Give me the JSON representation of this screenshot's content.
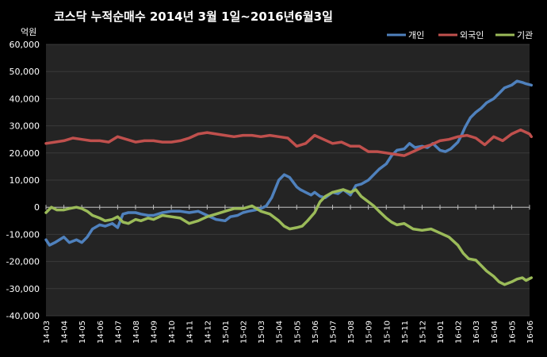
{
  "chart_data": {
    "type": "line",
    "title": "코스닥  누적순매수 2014년 3월 1일~2016년6월3일",
    "ylabel": "억원",
    "xlabel": "",
    "ylim": [
      -40000,
      60000
    ],
    "yticks": [
      60000,
      50000,
      40000,
      30000,
      20000,
      10000,
      0,
      -10000,
      -20000,
      -30000,
      -40000
    ],
    "ytick_labels": [
      "60,000",
      "50,000",
      "40,000",
      "30,000",
      "20,000",
      "10,000",
      "0",
      "-10,000",
      "-20,000",
      "-30,000",
      "-40,000"
    ],
    "categories": [
      "14-03",
      "14-04",
      "14-05",
      "14-06",
      "14-07",
      "14-08",
      "14-09",
      "14-10",
      "14-11",
      "14-12",
      "15-01",
      "15-02",
      "15-03",
      "15-04",
      "15-05",
      "15-06",
      "15-07",
      "15-08",
      "15-09",
      "15-10",
      "15-11",
      "15-12",
      "16-01",
      "16-02",
      "16-03",
      "16-04",
      "16-05",
      "16-06"
    ],
    "grid": true,
    "legend_position": "top-right",
    "series": [
      {
        "name": "개인",
        "color": "#4f81bd",
        "x": [
          0,
          0.2,
          0.5,
          1,
          1.3,
          1.7,
          2,
          2.3,
          2.6,
          3,
          3.3,
          3.7,
          4,
          4.3,
          4.6,
          5,
          5.3,
          5.7,
          6,
          6.5,
          7,
          7.5,
          8,
          8.5,
          9,
          9.5,
          10,
          10.3,
          10.7,
          11,
          11.3,
          11.7,
          12,
          12.3,
          12.6,
          13,
          13.3,
          13.6,
          14,
          14.2,
          14.5,
          14.8,
          15,
          15.3,
          15.6,
          16,
          16.3,
          16.6,
          17,
          17.3,
          17.6,
          18,
          18.3,
          18.6,
          19,
          19.3,
          19.6,
          20,
          20.3,
          20.6,
          21,
          21.3,
          21.6,
          22,
          22.3,
          22.6,
          23,
          23.2,
          23.4,
          23.7,
          24,
          24.3,
          24.6,
          25,
          25.3,
          25.6,
          26,
          26.3,
          26.6,
          26.8,
          27.1
        ],
        "y": [
          -12000,
          -14000,
          -13000,
          -11000,
          -13000,
          -12000,
          -13000,
          -11000,
          -8000,
          -6500,
          -7000,
          -6000,
          -7500,
          -2500,
          -2000,
          -2000,
          -2500,
          -3000,
          -3000,
          -2000,
          -1500,
          -1500,
          -2000,
          -1500,
          -3000,
          -4500,
          -5000,
          -3500,
          -3000,
          -2000,
          -1500,
          -1000,
          -500,
          500,
          3500,
          10000,
          12000,
          11000,
          7500,
          6500,
          5500,
          4500,
          5500,
          4000,
          3500,
          5500,
          5000,
          6500,
          4500,
          8000,
          8500,
          10000,
          12000,
          14000,
          16000,
          19000,
          21000,
          21500,
          23500,
          22000,
          22500,
          22000,
          23500,
          21000,
          20500,
          21500,
          24000,
          26500,
          29500,
          33000,
          35000,
          36500,
          38500,
          40000,
          42000,
          44000,
          45000,
          46500,
          46000,
          45500,
          45000
        ]
      },
      {
        "name": "외국인",
        "color": "#c0504d",
        "x": [
          0,
          0.5,
          1,
          1.5,
          2,
          2.5,
          3,
          3.5,
          4,
          4.5,
          5,
          5.5,
          6,
          6.5,
          7,
          7.5,
          8,
          8.5,
          9,
          9.5,
          10,
          10.5,
          11,
          11.5,
          12,
          12.5,
          13,
          13.5,
          14,
          14.5,
          15,
          15.5,
          16,
          16.5,
          17,
          17.5,
          18,
          18.5,
          19,
          19.5,
          20,
          20.5,
          21,
          21.5,
          22,
          22.5,
          23,
          23.5,
          24,
          24.5,
          25,
          25.5,
          26,
          26.5,
          27,
          27.1
        ],
        "y": [
          23500,
          24000,
          24500,
          25500,
          25000,
          24500,
          24500,
          24000,
          26000,
          25000,
          24000,
          24500,
          24500,
          24000,
          24000,
          24500,
          25500,
          27000,
          27500,
          27000,
          26500,
          26000,
          26500,
          26500,
          26000,
          26500,
          26000,
          25500,
          22500,
          23500,
          26500,
          25000,
          23500,
          24000,
          22500,
          22500,
          20500,
          20500,
          20000,
          19500,
          19000,
          20500,
          22000,
          23000,
          24500,
          25000,
          26000,
          26500,
          25500,
          23000,
          26000,
          24500,
          27000,
          28500,
          27000,
          26000
        ]
      },
      {
        "name": "기관",
        "color": "#9bbb59",
        "x": [
          0,
          0.3,
          0.6,
          1,
          1.3,
          1.7,
          2,
          2.3,
          2.6,
          3,
          3.3,
          3.7,
          4,
          4.3,
          4.6,
          5,
          5.3,
          5.7,
          6,
          6.5,
          7,
          7.5,
          8,
          8.5,
          9,
          9.5,
          10,
          10.5,
          11,
          11.5,
          12,
          12.5,
          13,
          13.3,
          13.6,
          14,
          14.3,
          14.6,
          15,
          15.3,
          15.6,
          16,
          16.3,
          16.6,
          17,
          17.3,
          17.6,
          18,
          18.3,
          18.6,
          19,
          19.3,
          19.6,
          20,
          20.5,
          21,
          21.5,
          22,
          22.5,
          23,
          23.3,
          23.6,
          24,
          24.3,
          24.6,
          25,
          25.3,
          25.6,
          26,
          26.3,
          26.6,
          26.8,
          27.1
        ],
        "y": [
          -2000,
          0,
          -1000,
          -1000,
          -500,
          0,
          -500,
          -1500,
          -3000,
          -4000,
          -5000,
          -4500,
          -3500,
          -5500,
          -6000,
          -4500,
          -5000,
          -4000,
          -4500,
          -3000,
          -3500,
          -4000,
          -6000,
          -5000,
          -3500,
          -2500,
          -1500,
          -500,
          -500,
          500,
          -1500,
          -2500,
          -5000,
          -7000,
          -8000,
          -7500,
          -7000,
          -5000,
          -2000,
          2000,
          4000,
          5500,
          6000,
          6500,
          5500,
          6500,
          4000,
          2000,
          500,
          -1500,
          -4000,
          -5500,
          -6500,
          -6000,
          -8000,
          -8500,
          -8000,
          -9500,
          -11000,
          -14000,
          -17000,
          -19000,
          -19500,
          -21500,
          -23500,
          -25500,
          -27500,
          -28500,
          -27500,
          -26500,
          -26000,
          -27000,
          -26000
        ]
      }
    ]
  }
}
